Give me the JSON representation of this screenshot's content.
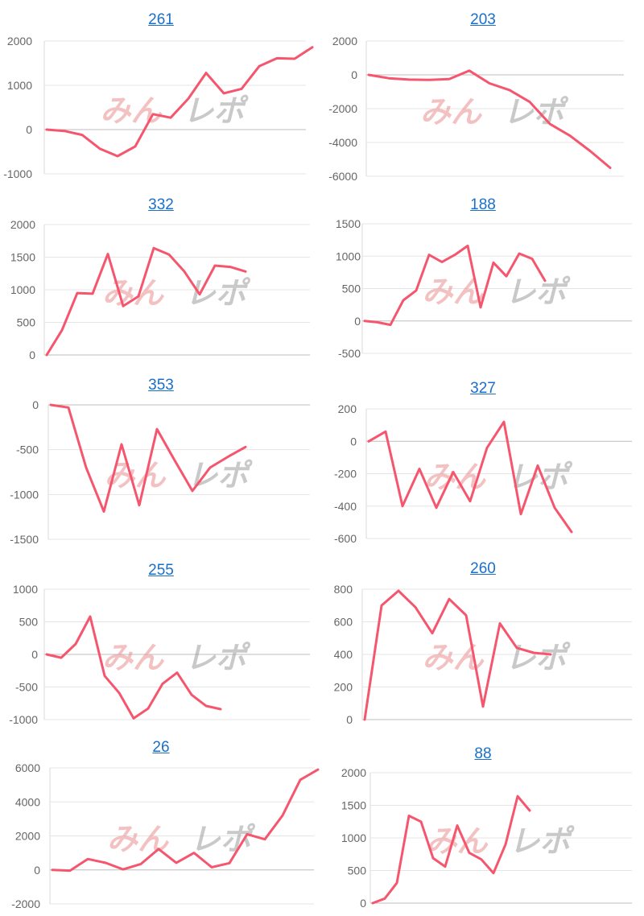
{
  "chart_data": [
    {
      "type": "line",
      "title": "261",
      "yticks": [
        -1000,
        0,
        1000,
        2000
      ],
      "ylim": [
        -1000,
        2000
      ],
      "color": "#f5566e",
      "watermark": "みんレポ",
      "values": [
        0,
        -30,
        -120,
        -430,
        -600,
        -380,
        350,
        270,
        700,
        1280,
        820,
        920,
        1430,
        1610,
        1600,
        1860
      ]
    },
    {
      "type": "line",
      "title": "203",
      "yticks": [
        -6000,
        -4000,
        -2000,
        0,
        2000
      ],
      "ylim": [
        -6000,
        2000
      ],
      "color": "#f5566e",
      "watermark": "みんレポ",
      "values": [
        0,
        -200,
        -280,
        -300,
        -250,
        250,
        -500,
        -900,
        -1600,
        -2900,
        -3600,
        -4500,
        -5500
      ]
    },
    {
      "type": "line",
      "title": "332",
      "yticks": [
        0,
        500,
        1000,
        1500,
        2000
      ],
      "ylim": [
        0,
        2000
      ],
      "color": "#f5566e",
      "watermark": "みんレポ",
      "values": [
        0,
        380,
        950,
        940,
        1550,
        750,
        900,
        1640,
        1540,
        1280,
        930,
        1370,
        1350,
        1280
      ]
    },
    {
      "type": "line",
      "title": "188",
      "yticks": [
        -500,
        0,
        500,
        1000,
        1500
      ],
      "ylim": [
        -500,
        1500
      ],
      "color": "#f5566e",
      "watermark": "みんレポ",
      "values": [
        0,
        -20,
        -60,
        320,
        470,
        1020,
        910,
        1020,
        1160,
        210,
        900,
        690,
        1040,
        960,
        620
      ]
    },
    {
      "type": "line",
      "title": "353",
      "yticks": [
        -1500,
        -1000,
        -500,
        0
      ],
      "ylim": [
        -1500,
        0
      ],
      "color": "#f5566e",
      "watermark": "みんレポ",
      "values": [
        0,
        -30,
        -700,
        -1190,
        -440,
        -1120,
        -270,
        -620,
        -960,
        -700,
        -580,
        -470
      ]
    },
    {
      "type": "line",
      "title": "327",
      "yticks": [
        -600,
        -400,
        -200,
        0,
        200
      ],
      "ylim": [
        -600,
        200
      ],
      "color": "#f5566e",
      "watermark": "みんレポ",
      "values": [
        0,
        60,
        -400,
        -170,
        -410,
        -190,
        -370,
        -40,
        120,
        -450,
        -150,
        -410,
        -560
      ]
    },
    {
      "type": "line",
      "title": "255",
      "yticks": [
        -1000,
        -500,
        0,
        500,
        1000
      ],
      "ylim": [
        -1000,
        1000
      ],
      "color": "#f5566e",
      "watermark": "みんレポ",
      "values": [
        0,
        -50,
        160,
        580,
        -330,
        -590,
        -980,
        -830,
        -450,
        -280,
        -620,
        -790,
        -840
      ]
    },
    {
      "type": "line",
      "title": "260",
      "yticks": [
        0,
        200,
        400,
        600,
        800
      ],
      "ylim": [
        0,
        800
      ],
      "color": "#f5566e",
      "watermark": "みんレポ",
      "values": [
        0,
        700,
        790,
        690,
        530,
        740,
        640,
        80,
        590,
        440,
        410,
        400
      ]
    },
    {
      "type": "line",
      "title": "26",
      "yticks": [
        -2000,
        0,
        2000,
        4000,
        6000
      ],
      "ylim": [
        -2000,
        6000
      ],
      "color": "#f5566e",
      "watermark": "みんレポ",
      "values": [
        0,
        -40,
        640,
        420,
        30,
        350,
        1230,
        420,
        1000,
        160,
        400,
        2100,
        1800,
        3200,
        5300,
        5900
      ]
    },
    {
      "type": "line",
      "title": "88",
      "yticks": [
        0,
        500,
        1000,
        1500,
        2000
      ],
      "ylim": [
        0,
        2000
      ],
      "color": "#f5566e",
      "watermark": "みんレポ",
      "values": [
        0,
        70,
        310,
        1340,
        1250,
        690,
        560,
        1190,
        770,
        670,
        460,
        900,
        1640,
        1420
      ]
    }
  ]
}
